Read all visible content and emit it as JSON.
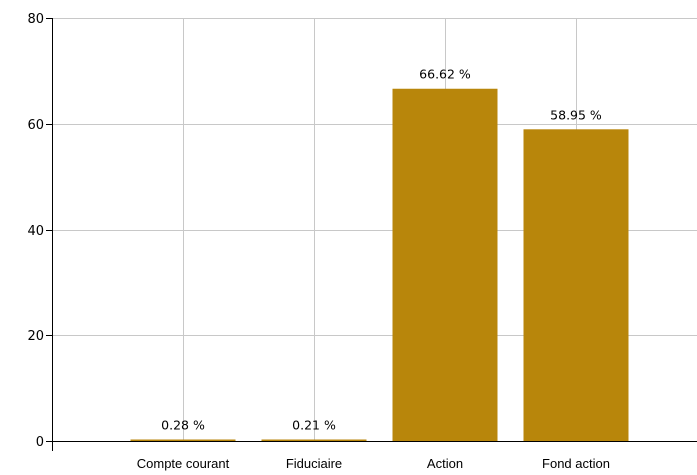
{
  "chart_data": {
    "type": "bar",
    "categories": [
      "Compte courant",
      "Fiduciaire",
      "Action",
      "Fond action"
    ],
    "values": [
      0.28,
      0.21,
      66.62,
      58.95
    ],
    "data_labels": [
      "0.28 %",
      "0.21 %",
      "66.62 %",
      "58.95 %"
    ],
    "title": "",
    "xlabel": "",
    "ylabel": "",
    "ylim": [
      0,
      80
    ],
    "yticks": [
      0,
      20,
      40,
      60,
      80
    ],
    "grid": true,
    "colors": {
      "bar": "#b8860b",
      "grid": "#c8c8c8",
      "axis": "#000000"
    }
  }
}
